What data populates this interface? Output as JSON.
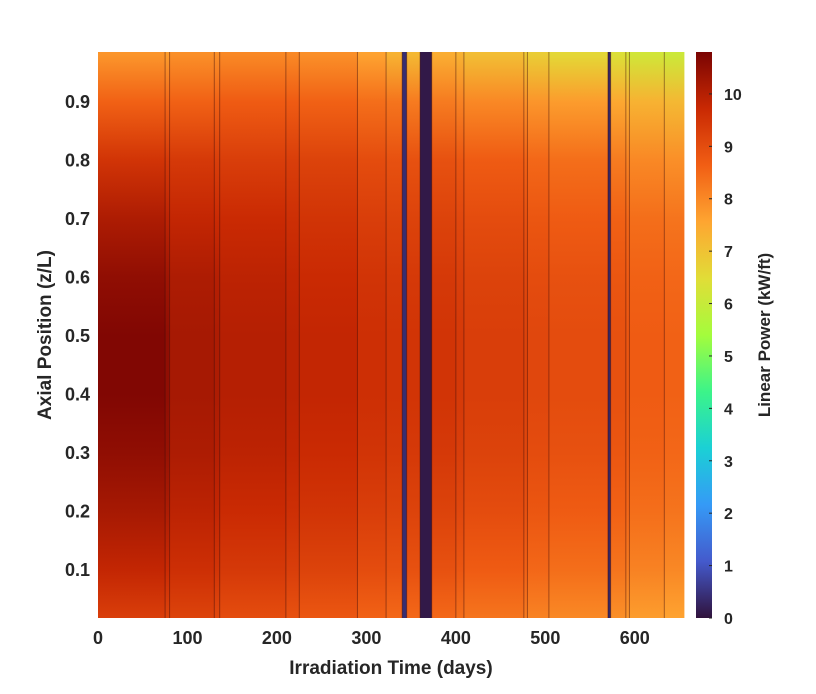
{
  "chart_data": {
    "type": "heatmap",
    "title": "",
    "xlabel": "Irradiation Time (days)",
    "ylabel": "Axial Position (z/L)",
    "colorbar_label": "Linear Power (kW/ft)",
    "xlim": [
      0,
      655
    ],
    "ylim": [
      0.018,
      0.985
    ],
    "clim": [
      0,
      10.8
    ],
    "x_ticks": [
      0,
      100,
      200,
      300,
      400,
      500,
      600
    ],
    "y_ticks": [
      0.1,
      0.2,
      0.3,
      0.4,
      0.5,
      0.6,
      0.7,
      0.8,
      0.9
    ],
    "colorbar_ticks": [
      0,
      1,
      2,
      3,
      4,
      5,
      6,
      7,
      8,
      9,
      10
    ],
    "colormap": "turbo",
    "x_tick_labels": [
      "0",
      "100",
      "200",
      "300",
      "400",
      "500",
      "600"
    ],
    "y_tick_labels": [
      "0.1",
      "0.2",
      "0.3",
      "0.4",
      "0.5",
      "0.6",
      "0.7",
      "0.8",
      "0.9"
    ],
    "colorbar_tick_labels": [
      "0",
      "1",
      "2",
      "3",
      "4",
      "5",
      "6",
      "7",
      "8",
      "9",
      "10"
    ],
    "z_axial": [
      0.02,
      0.1,
      0.2,
      0.3,
      0.4,
      0.5,
      0.6,
      0.7,
      0.8,
      0.9,
      0.98
    ],
    "segments": [
      {
        "start": 0,
        "end": 75,
        "power_profile": [
          9.3,
          9.8,
          10.2,
          10.5,
          10.7,
          10.7,
          10.5,
          10.1,
          9.5,
          8.6,
          7.8
        ]
      },
      {
        "start": 75,
        "end": 80,
        "power_profile": [
          9.2,
          9.7,
          10.1,
          10.4,
          10.5,
          10.5,
          10.3,
          9.9,
          9.4,
          8.5,
          7.7
        ]
      },
      {
        "start": 80,
        "end": 130,
        "power_profile": [
          9.2,
          9.6,
          9.9,
          10.1,
          10.2,
          10.2,
          10.1,
          9.8,
          9.4,
          8.6,
          7.9
        ]
      },
      {
        "start": 130,
        "end": 136,
        "power_profile": [
          9.1,
          9.5,
          9.8,
          10.0,
          10.1,
          10.1,
          10.0,
          9.7,
          9.3,
          8.6,
          7.9
        ]
      },
      {
        "start": 136,
        "end": 210,
        "power_profile": [
          9.0,
          9.4,
          9.7,
          9.9,
          10.0,
          10.0,
          9.9,
          9.7,
          9.3,
          8.7,
          8.0
        ]
      },
      {
        "start": 210,
        "end": 225,
        "power_profile": [
          8.9,
          9.3,
          9.6,
          9.8,
          9.9,
          9.9,
          9.8,
          9.6,
          9.3,
          8.7,
          8.0
        ]
      },
      {
        "start": 225,
        "end": 290,
        "power_profile": [
          8.8,
          9.2,
          9.5,
          9.7,
          9.8,
          9.8,
          9.7,
          9.5,
          9.2,
          8.6,
          7.9
        ]
      },
      {
        "start": 290,
        "end": 322,
        "power_profile": [
          8.6,
          9.0,
          9.3,
          9.5,
          9.6,
          9.6,
          9.5,
          9.3,
          9.0,
          8.4,
          7.6
        ]
      },
      {
        "start": 322,
        "end": 340,
        "power_profile": [
          8.5,
          8.9,
          9.2,
          9.4,
          9.5,
          9.5,
          9.4,
          9.2,
          8.9,
          8.3,
          7.3
        ]
      },
      {
        "start": 340,
        "end": 345,
        "power_profile": [
          0.4,
          0.4,
          0.4,
          0.4,
          0.4,
          0.4,
          0.4,
          0.4,
          0.4,
          0.4,
          0.4
        ]
      },
      {
        "start": 345,
        "end": 360,
        "power_profile": [
          8.5,
          8.9,
          9.2,
          9.4,
          9.5,
          9.5,
          9.4,
          9.2,
          8.9,
          8.2,
          7.2
        ]
      },
      {
        "start": 360,
        "end": 373,
        "power_profile": [
          0.1,
          0.1,
          0.1,
          0.1,
          0.1,
          0.1,
          0.1,
          0.1,
          0.1,
          0.1,
          0.1
        ]
      },
      {
        "start": 373,
        "end": 400,
        "power_profile": [
          8.5,
          8.9,
          9.2,
          9.4,
          9.5,
          9.5,
          9.4,
          9.2,
          8.9,
          8.2,
          7.4
        ]
      },
      {
        "start": 400,
        "end": 409,
        "power_profile": [
          8.4,
          8.8,
          9.1,
          9.3,
          9.4,
          9.4,
          9.3,
          9.1,
          8.8,
          8.1,
          7.3
        ]
      },
      {
        "start": 409,
        "end": 476,
        "power_profile": [
          8.3,
          8.7,
          9.0,
          9.2,
          9.3,
          9.3,
          9.2,
          9.0,
          8.7,
          8.0,
          7.1
        ]
      },
      {
        "start": 476,
        "end": 480,
        "power_profile": [
          8.2,
          8.6,
          8.9,
          9.1,
          9.2,
          9.2,
          9.1,
          8.9,
          8.6,
          7.9,
          6.9
        ]
      },
      {
        "start": 480,
        "end": 504,
        "power_profile": [
          8.1,
          8.5,
          8.8,
          9.0,
          9.1,
          9.1,
          9.0,
          8.8,
          8.5,
          7.8,
          6.8
        ]
      },
      {
        "start": 504,
        "end": 570,
        "power_profile": [
          8.0,
          8.4,
          8.7,
          8.9,
          9.0,
          9.0,
          8.9,
          8.7,
          8.4,
          7.7,
          6.6
        ]
      },
      {
        "start": 570,
        "end": 573,
        "power_profile": [
          0.3,
          0.3,
          0.3,
          0.3,
          0.3,
          0.3,
          0.3,
          0.3,
          0.3,
          0.3,
          0.3
        ]
      },
      {
        "start": 573,
        "end": 590,
        "power_profile": [
          7.9,
          8.3,
          8.6,
          8.8,
          8.9,
          8.9,
          8.8,
          8.6,
          8.2,
          7.5,
          6.4
        ]
      },
      {
        "start": 590,
        "end": 594,
        "power_profile": [
          7.8,
          8.2,
          8.5,
          8.7,
          8.8,
          8.8,
          8.7,
          8.5,
          8.1,
          7.4,
          6.3
        ]
      },
      {
        "start": 594,
        "end": 633,
        "power_profile": [
          7.7,
          8.1,
          8.4,
          8.6,
          8.7,
          8.7,
          8.6,
          8.4,
          8.0,
          7.3,
          6.2
        ]
      },
      {
        "start": 633,
        "end": 655,
        "power_profile": [
          7.6,
          8.0,
          8.3,
          8.5,
          8.6,
          8.6,
          8.5,
          8.3,
          7.9,
          7.2,
          6.1
        ]
      }
    ]
  }
}
